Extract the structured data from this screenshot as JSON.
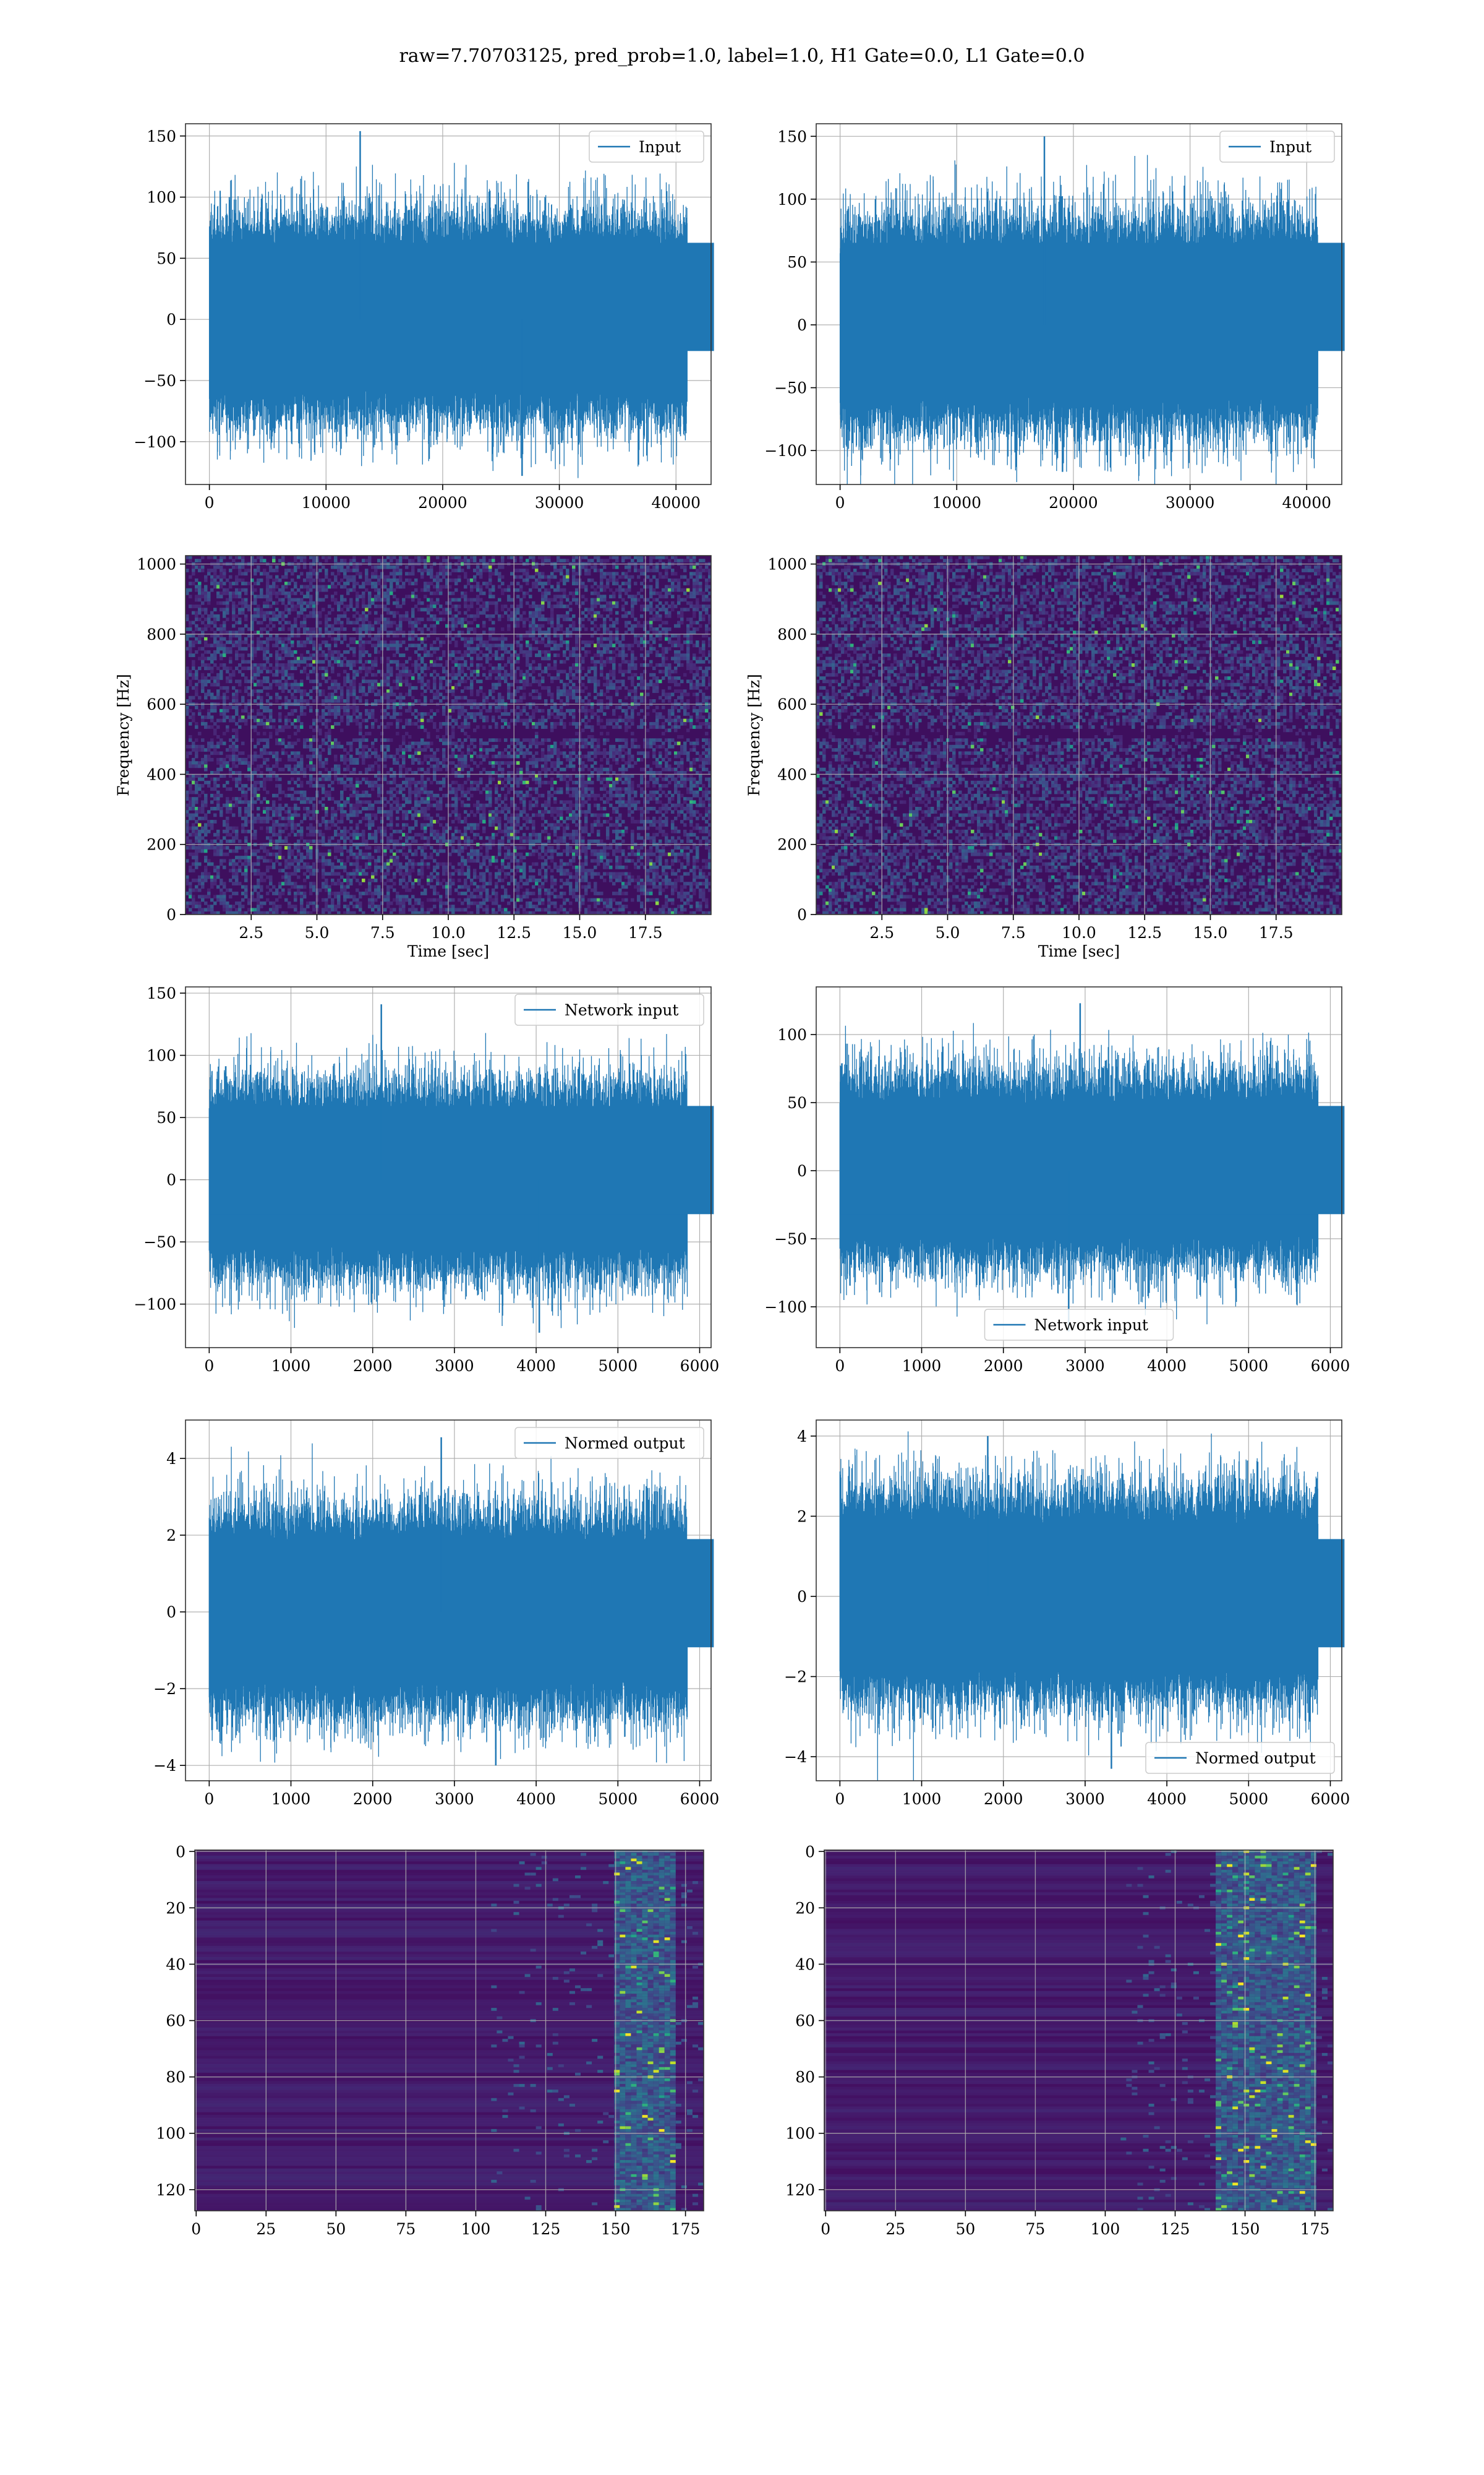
{
  "suptitle": "raw=7.70703125, pred_prob=1.0, label=1.0, H1 Gate=0.0, L1 Gate=0.0",
  "colors": {
    "line": "#1f77b4",
    "viridis_bg": "#3e0f5e",
    "grid": "#b0b0b0"
  },
  "chart_data": [
    {
      "id": "h1-input",
      "type": "line",
      "legend": "Input",
      "legend_loc": "upper right",
      "n_samples": 40960,
      "xlim": [
        -2048,
        43008
      ],
      "ylim": [
        -135,
        160
      ],
      "xticks": [
        0,
        10000,
        20000,
        30000,
        40000
      ],
      "yticks": [
        -100,
        -50,
        0,
        50,
        100,
        150
      ],
      "amp_sd": 24,
      "spike_max": 154,
      "spike_min": -128,
      "grid": true
    },
    {
      "id": "l1-input",
      "type": "line",
      "legend": "Input",
      "legend_loc": "upper right",
      "n_samples": 40960,
      "xlim": [
        -2048,
        43008
      ],
      "ylim": [
        -127,
        160
      ],
      "xticks": [
        0,
        10000,
        20000,
        30000,
        40000
      ],
      "yticks": [
        -100,
        -50,
        0,
        50,
        100,
        150
      ],
      "amp_sd": 24,
      "spike_max": 150,
      "spike_min": -117,
      "grid": true
    },
    {
      "id": "h1-spectrogram",
      "type": "heatmap",
      "colormap": "viridis",
      "xlim": [
        0,
        20
      ],
      "ylim": [
        0,
        1024
      ],
      "xticks": [
        2.5,
        5.0,
        7.5,
        10.0,
        12.5,
        15.0,
        17.5
      ],
      "yticks": [
        0,
        200,
        400,
        600,
        800,
        1000
      ],
      "xlabel": "Time [sec]",
      "ylabel": "Frequency [Hz]",
      "grid": true
    },
    {
      "id": "l1-spectrogram",
      "type": "heatmap",
      "colormap": "viridis",
      "xlim": [
        0,
        20
      ],
      "ylim": [
        0,
        1024
      ],
      "xticks": [
        2.5,
        5.0,
        7.5,
        10.0,
        12.5,
        15.0,
        17.5
      ],
      "yticks": [
        0,
        200,
        400,
        600,
        800,
        1000
      ],
      "xlabel": "Time [sec]",
      "ylabel": "Frequency [Hz]",
      "grid": true
    },
    {
      "id": "h1-network-input",
      "type": "line",
      "legend": "Network input",
      "legend_loc": "upper right",
      "n_samples": 5850,
      "xlim": [
        -290,
        6140
      ],
      "ylim": [
        -135,
        155
      ],
      "xticks": [
        0,
        1000,
        2000,
        3000,
        4000,
        5000,
        6000
      ],
      "yticks": [
        -100,
        -50,
        0,
        50,
        100,
        150
      ],
      "amp_sd": 22,
      "spike_max": 141,
      "spike_min": -123,
      "grid": true
    },
    {
      "id": "l1-network-input",
      "type": "line",
      "legend": "Network input",
      "legend_loc": "lower center",
      "n_samples": 5850,
      "xlim": [
        -290,
        6140
      ],
      "ylim": [
        -130,
        135
      ],
      "xticks": [
        0,
        1000,
        2000,
        3000,
        4000,
        5000,
        6000
      ],
      "yticks": [
        -100,
        -50,
        0,
        50,
        100
      ],
      "amp_sd": 20,
      "spike_max": 123,
      "spike_min": -118,
      "grid": true
    },
    {
      "id": "h1-normed-output",
      "type": "line",
      "legend": "Normed output",
      "legend_loc": "upper right",
      "n_samples": 5850,
      "xlim": [
        -290,
        6140
      ],
      "ylim": [
        -4.4,
        5.0
      ],
      "xticks": [
        0,
        1000,
        2000,
        3000,
        4000,
        5000,
        6000
      ],
      "yticks": [
        -4,
        -2,
        0,
        2,
        4
      ],
      "amp_sd": 0.75,
      "spike_max": 4.55,
      "spike_min": -4.0,
      "grid": true
    },
    {
      "id": "l1-normed-output",
      "type": "line",
      "legend": "Normed output",
      "legend_loc": "lower right",
      "n_samples": 5850,
      "xlim": [
        -290,
        6140
      ],
      "ylim": [
        -4.6,
        4.4
      ],
      "xticks": [
        0,
        1000,
        2000,
        3000,
        4000,
        5000,
        6000
      ],
      "yticks": [
        -4,
        -2,
        0,
        2,
        4
      ],
      "amp_sd": 0.75,
      "spike_max": 4.0,
      "spike_min": -4.3,
      "grid": true
    },
    {
      "id": "h1-feature-map",
      "type": "heatmap",
      "colormap": "viridis",
      "xlim": [
        -0.5,
        181.5
      ],
      "ylim": [
        127.5,
        -0.5
      ],
      "xticks": [
        0,
        25,
        50,
        75,
        100,
        125,
        150,
        175
      ],
      "yticks": [
        0,
        20,
        40,
        60,
        80,
        100,
        120
      ],
      "activity_band": [
        150,
        170
      ],
      "grid": true
    },
    {
      "id": "l1-feature-map",
      "type": "heatmap",
      "colormap": "viridis",
      "xlim": [
        -0.5,
        181.5
      ],
      "ylim": [
        127.5,
        -0.5
      ],
      "xticks": [
        0,
        25,
        50,
        75,
        100,
        125,
        150,
        175
      ],
      "yticks": [
        0,
        20,
        40,
        60,
        80,
        100,
        120
      ],
      "activity_band": [
        140,
        175
      ],
      "grid": true
    }
  ]
}
